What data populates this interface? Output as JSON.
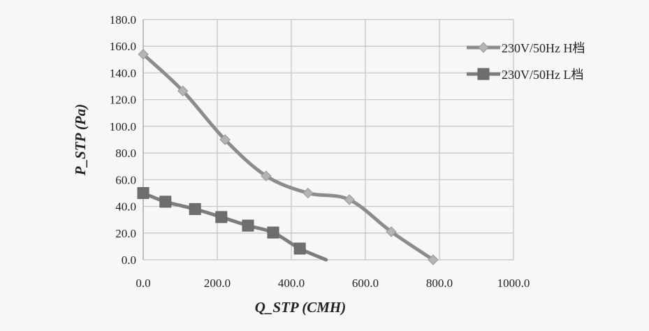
{
  "chart_data": {
    "type": "line",
    "title": "",
    "xlabel": "Q_STP (CMH)",
    "ylabel": "P_STP (Pa)",
    "xlim": [
      0,
      1000
    ],
    "ylim": [
      0,
      180
    ],
    "xticks": [
      "0.0",
      "200.0",
      "400.0",
      "600.0",
      "800.0",
      "1000.0"
    ],
    "yticks": [
      "0.0",
      "20.0",
      "40.0",
      "60.0",
      "80.0",
      "100.0",
      "120.0",
      "140.0",
      "160.0",
      "180.0"
    ],
    "grid": true,
    "legend_position": "right",
    "series": [
      {
        "name": "230V/50Hz H档",
        "marker": "diamond",
        "color": "#8c8c8c",
        "marker_color": "#b4b4b4",
        "x": [
          0,
          107,
          221,
          332,
          445,
          557,
          670,
          783
        ],
        "y": [
          154,
          126.5,
          90,
          62.8,
          50,
          45,
          21,
          0
        ]
      },
      {
        "name": "230V/50Hz L档",
        "marker": "square",
        "color": "#7d7d7d",
        "marker_color": "#6e6e6e",
        "x": [
          0,
          60,
          140,
          211,
          283,
          351,
          423,
          494
        ],
        "y": [
          50,
          43.5,
          38,
          32,
          25.6,
          20.4,
          8.4,
          0
        ],
        "last_point_unmarked": true
      }
    ]
  }
}
